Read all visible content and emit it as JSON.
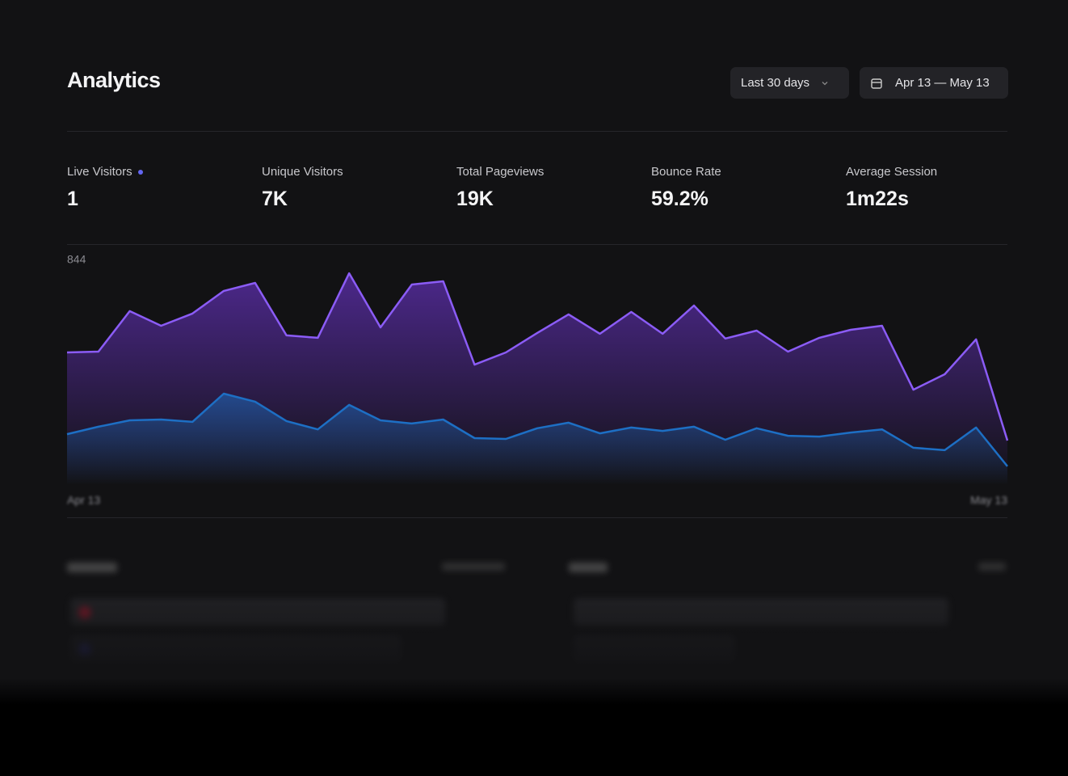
{
  "header": {
    "title": "Analytics",
    "range_button": "Last 30 days",
    "date_button": "Apr 13 — May 13"
  },
  "stats": [
    {
      "label": "Live Visitors",
      "value": "1"
    },
    {
      "label": "Unique Visitors",
      "value": "7K"
    },
    {
      "label": "Total Pageviews",
      "value": "19K"
    },
    {
      "label": "Bounce Rate",
      "value": "59.2%"
    },
    {
      "label": "Average Session",
      "value": "1m22s"
    }
  ],
  "chart_data": {
    "type": "area",
    "categories": [
      "Apr 13",
      null,
      null,
      null,
      null,
      null,
      null,
      null,
      null,
      null,
      null,
      null,
      null,
      null,
      null,
      null,
      null,
      null,
      null,
      null,
      null,
      null,
      null,
      null,
      null,
      null,
      null,
      null,
      null,
      null,
      "May 13"
    ],
    "series": [
      {
        "color": "#8b5cf6",
        "values": [
          498,
          501,
          653,
          598,
          644,
          729,
          759,
          562,
          553,
          795,
          592,
          753,
          765,
          452,
          498,
          571,
          641,
          568,
          650,
          568,
          674,
          550,
          580,
          501,
          553,
          583,
          598,
          358,
          416,
          547,
          167
        ]
      },
      {
        "color": "#1d6fc4",
        "values": [
          191,
          219,
          243,
          246,
          237,
          343,
          313,
          240,
          209,
          301,
          243,
          231,
          246,
          176,
          173,
          213,
          234,
          194,
          216,
          203,
          219,
          170,
          213,
          185,
          182,
          197,
          209,
          140,
          131,
          216,
          70
        ]
      }
    ],
    "ylim": [
      0,
      844
    ],
    "yticks": [
      844
    ]
  }
}
